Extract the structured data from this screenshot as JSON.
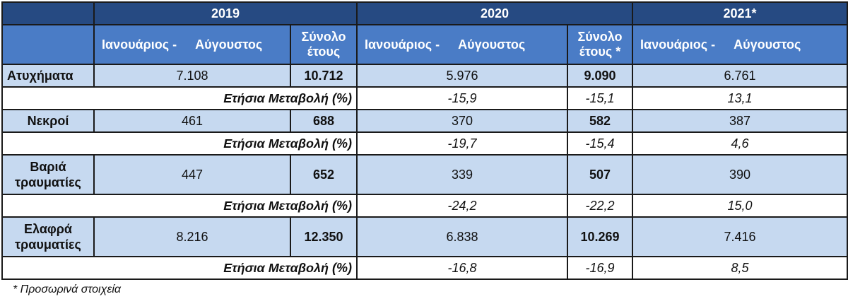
{
  "header": {
    "years": [
      "2019",
      "2020",
      "2021*"
    ],
    "sub_2019_period": [
      "Ιανουάριος -",
      "Αύγουστος"
    ],
    "sub_2019_total": [
      "Σύνολο",
      "έτους"
    ],
    "sub_2020_period": [
      "Ιανουάριος -",
      "Αύγουστος"
    ],
    "sub_2020_total": [
      "Σύνολο",
      "έτους *"
    ],
    "sub_2021_period": [
      "Ιανουάριος -",
      "Αύγουστος"
    ]
  },
  "rows": [
    {
      "label": [
        "Ατυχήματα"
      ],
      "values": [
        "7.108",
        "10.712",
        "5.976",
        "9.090",
        "6.761"
      ],
      "change_label": "Ετήσια Μεταβολή (%)",
      "change": [
        "-15,9",
        "-15,1",
        "13,1"
      ]
    },
    {
      "label": [
        "Νεκροί"
      ],
      "values": [
        "461",
        "688",
        "370",
        "582",
        "387"
      ],
      "change_label": "Ετήσια Μεταβολή (%)",
      "change": [
        "-19,7",
        "-15,4",
        "4,6"
      ]
    },
    {
      "label": [
        "Βαριά",
        "τραυματίες"
      ],
      "values": [
        "447",
        "652",
        "339",
        "507",
        "390"
      ],
      "change_label": "Ετήσια Μεταβολή (%)",
      "change": [
        "-24,2",
        "-22,2",
        "15,0"
      ]
    },
    {
      "label": [
        "Ελαφρά",
        "τραυματίες"
      ],
      "values": [
        "8.216",
        "12.350",
        "6.838",
        "10.269",
        "7.416"
      ],
      "change_label": "Ετήσια Μεταβολή (%)",
      "change": [
        "-16,8",
        "-16,9",
        "8,5"
      ]
    }
  ],
  "footnote": "* Προσωρινά στοιχεία"
}
